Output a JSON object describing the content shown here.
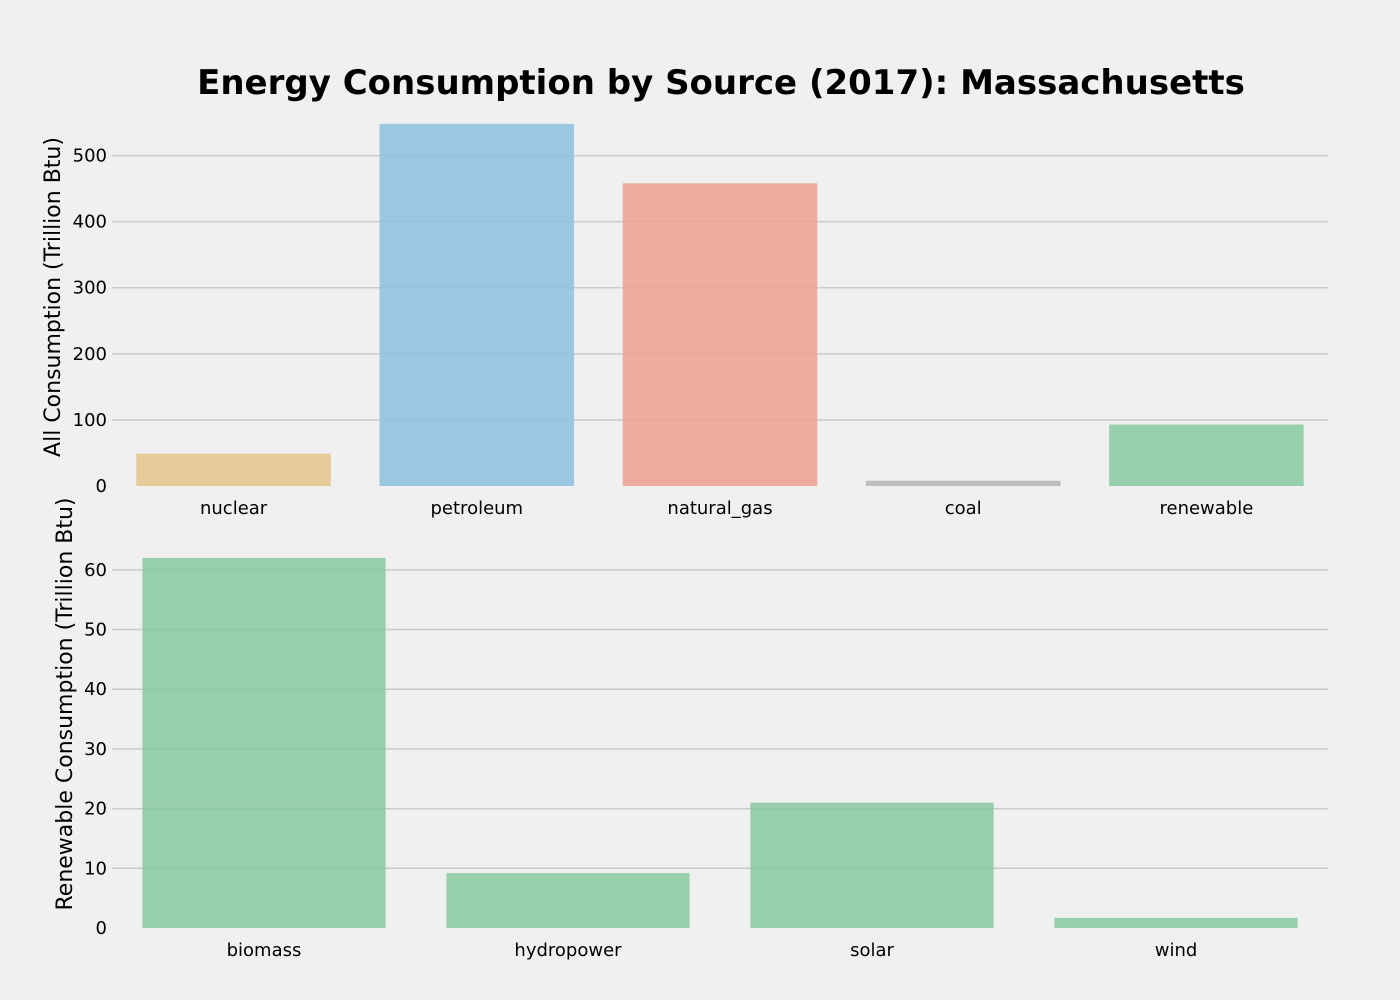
{
  "figure": {
    "title": "Energy Consumption by Source (2017): Massachusetts",
    "background_color": "#f0f0f0",
    "grid_color": "#cbcbcb"
  },
  "chart_data": [
    {
      "type": "bar",
      "title": "Energy Consumption by Source (2017): Massachusetts",
      "xlabel": "",
      "ylabel": "All Consumption (Trillion Btu)",
      "categories": [
        "nuclear",
        "petroleum",
        "natural_gas",
        "coal",
        "renewable"
      ],
      "values": [
        49,
        548,
        458,
        8,
        93
      ],
      "colors": [
        "#e5c489",
        "#8dbfdf",
        "#efa08e",
        "#b5b5b5",
        "#88c9a0"
      ],
      "yticks": [
        0,
        100,
        200,
        300,
        400,
        500
      ],
      "ylim": [
        0,
        572
      ],
      "grid": true
    },
    {
      "type": "bar",
      "title": "",
      "xlabel": "",
      "ylabel": "Renewable Consumption (Trillion Btu)",
      "categories": [
        "biomass",
        "hydropower",
        "solar",
        "wind"
      ],
      "values": [
        62,
        9.2,
        21,
        1.7
      ],
      "colors": [
        "#88c9a0",
        "#88c9a0",
        "#88c9a0",
        "#88c9a0"
      ],
      "yticks": [
        0,
        10,
        20,
        30,
        40,
        50,
        60
      ],
      "ylim": [
        0,
        65
      ],
      "grid": true
    }
  ]
}
